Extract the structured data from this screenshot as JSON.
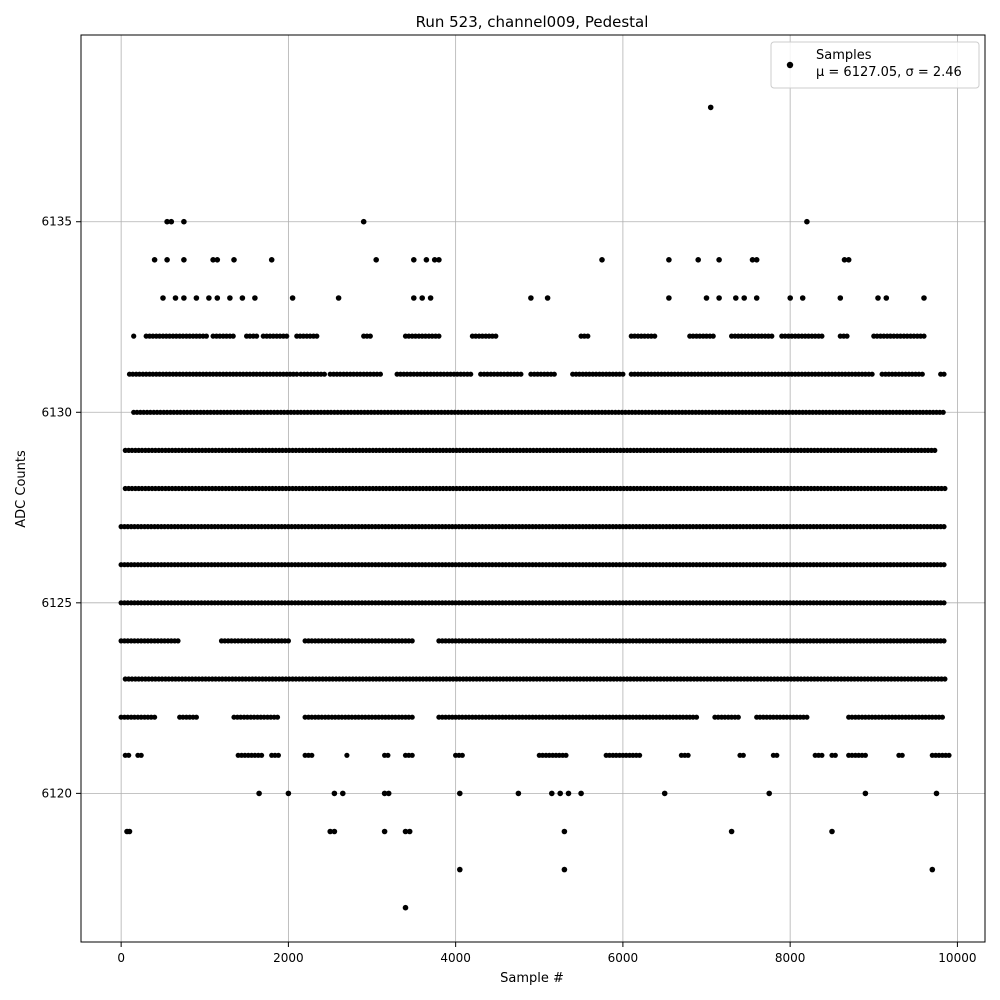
{
  "chart_data": {
    "type": "scatter",
    "title": "Run 523, channel009, Pedestal",
    "xlabel": "Sample #",
    "ylabel": "ADC Counts",
    "xlim": [
      -480,
      10330
    ],
    "ylim": [
      6116.1,
      6139.9
    ],
    "x_ticks": [
      0,
      2000,
      4000,
      6000,
      8000,
      10000
    ],
    "y_ticks": [
      6120,
      6125,
      6130,
      6135
    ],
    "grid": true,
    "legend": {
      "placement": "top-right",
      "entries": [
        "Samples",
        "μ = 6127.05, σ = 2.46"
      ]
    },
    "marker_color": "#000000",
    "series": [
      {
        "name": "Samples",
        "mu": 6127.05,
        "sigma": 2.46,
        "band_values": [
          6121,
          6122,
          6123,
          6124,
          6125,
          6126,
          6127,
          6128,
          6129,
          6130,
          6131,
          6132
        ],
        "band_segments": {
          "6132": [
            [
              150,
              150
            ],
            [
              300,
              1050
            ],
            [
              1100,
              1350
            ],
            [
              1500,
              1650
            ],
            [
              1700,
              2000
            ],
            [
              2100,
              2350
            ],
            [
              2900,
              3000
            ],
            [
              3400,
              3800
            ],
            [
              4200,
              4500
            ],
            [
              5500,
              5600
            ],
            [
              6100,
              6400
            ],
            [
              6800,
              7100
            ],
            [
              7300,
              7800
            ],
            [
              7900,
              8400
            ],
            [
              8600,
              8700
            ],
            [
              9000,
              9600
            ]
          ],
          "6131": [
            [
              100,
              2100
            ],
            [
              2150,
              2450
            ],
            [
              2500,
              3100
            ],
            [
              3300,
              4200
            ],
            [
              4300,
              4800
            ],
            [
              4900,
              5200
            ],
            [
              5400,
              6000
            ],
            [
              6100,
              9000
            ],
            [
              9100,
              9600
            ],
            [
              9800,
              9850
            ]
          ],
          "6130": [
            [
              150,
              9850
            ]
          ],
          "6129": [
            [
              50,
              9750
            ]
          ],
          "6128": [
            [
              50,
              9850
            ]
          ],
          "6127": [
            [
              0,
              9850
            ]
          ],
          "6126": [
            [
              0,
              9850
            ]
          ],
          "6125": [
            [
              0,
              9850
            ]
          ],
          "6124": [
            [
              0,
              700
            ],
            [
              1200,
              2000
            ],
            [
              2200,
              3500
            ],
            [
              3800,
              9850
            ]
          ],
          "6123": [
            [
              50,
              9850
            ]
          ],
          "6122": [
            [
              0,
              400
            ],
            [
              700,
              900
            ],
            [
              1350,
              1900
            ],
            [
              2200,
              3500
            ],
            [
              3800,
              6900
            ],
            [
              7100,
              7400
            ],
            [
              7600,
              8200
            ],
            [
              8700,
              9850
            ]
          ],
          "6121": [
            [
              50,
              100
            ],
            [
              200,
              250
            ],
            [
              1400,
              1700
            ],
            [
              1800,
              1900
            ],
            [
              2200,
              2300
            ],
            [
              2700,
              2700
            ],
            [
              3150,
              3200
            ],
            [
              3400,
              3500
            ],
            [
              4000,
              4100
            ],
            [
              5000,
              5350
            ],
            [
              5800,
              6200
            ],
            [
              6700,
              6800
            ],
            [
              7400,
              7450
            ],
            [
              7800,
              7850
            ],
            [
              8300,
              8400
            ],
            [
              8500,
              8550
            ],
            [
              8700,
              8900
            ],
            [
              9300,
              9350
            ],
            [
              9700,
              9900
            ]
          ]
        },
        "outliers": [
          [
            70,
            6119
          ],
          [
            100,
            6119
          ],
          [
            1650,
            6120
          ],
          [
            2000,
            6120
          ],
          [
            2550,
            6120
          ],
          [
            2650,
            6120
          ],
          [
            3150,
            6120
          ],
          [
            3200,
            6120
          ],
          [
            4050,
            6120
          ],
          [
            4750,
            6120
          ],
          [
            5150,
            6120
          ],
          [
            5250,
            6120
          ],
          [
            5350,
            6120
          ],
          [
            5500,
            6120
          ],
          [
            6500,
            6120
          ],
          [
            7750,
            6120
          ],
          [
            8900,
            6120
          ],
          [
            9750,
            6120
          ],
          [
            2500,
            6119
          ],
          [
            2550,
            6119
          ],
          [
            3150,
            6119
          ],
          [
            3400,
            6119
          ],
          [
            3450,
            6119
          ],
          [
            5300,
            6119
          ],
          [
            7300,
            6119
          ],
          [
            8500,
            6119
          ],
          [
            4050,
            6118
          ],
          [
            5300,
            6118
          ],
          [
            9700,
            6118
          ],
          [
            3400,
            6117
          ],
          [
            500,
            6133
          ],
          [
            650,
            6133
          ],
          [
            750,
            6133
          ],
          [
            900,
            6133
          ],
          [
            1050,
            6133
          ],
          [
            1150,
            6133
          ],
          [
            1300,
            6133
          ],
          [
            1450,
            6133
          ],
          [
            1600,
            6133
          ],
          [
            2050,
            6133
          ],
          [
            2600,
            6133
          ],
          [
            3500,
            6133
          ],
          [
            3600,
            6133
          ],
          [
            3700,
            6133
          ],
          [
            4900,
            6133
          ],
          [
            5100,
            6133
          ],
          [
            6550,
            6133
          ],
          [
            7000,
            6133
          ],
          [
            7150,
            6133
          ],
          [
            7350,
            6133
          ],
          [
            7450,
            6133
          ],
          [
            7600,
            6133
          ],
          [
            8000,
            6133
          ],
          [
            8150,
            6133
          ],
          [
            8600,
            6133
          ],
          [
            9050,
            6133
          ],
          [
            9150,
            6133
          ],
          [
            9600,
            6133
          ],
          [
            400,
            6134
          ],
          [
            550,
            6134
          ],
          [
            750,
            6134
          ],
          [
            1100,
            6134
          ],
          [
            1150,
            6134
          ],
          [
            1350,
            6134
          ],
          [
            1800,
            6134
          ],
          [
            3050,
            6134
          ],
          [
            3500,
            6134
          ],
          [
            3650,
            6134
          ],
          [
            3750,
            6134
          ],
          [
            3800,
            6134
          ],
          [
            5750,
            6134
          ],
          [
            6550,
            6134
          ],
          [
            6900,
            6134
          ],
          [
            7150,
            6134
          ],
          [
            7550,
            6134
          ],
          [
            7600,
            6134
          ],
          [
            8650,
            6134
          ],
          [
            8700,
            6134
          ],
          [
            550,
            6135
          ],
          [
            600,
            6135
          ],
          [
            750,
            6135
          ],
          [
            2900,
            6135
          ],
          [
            8200,
            6135
          ],
          [
            7050,
            6138
          ]
        ]
      }
    ]
  }
}
